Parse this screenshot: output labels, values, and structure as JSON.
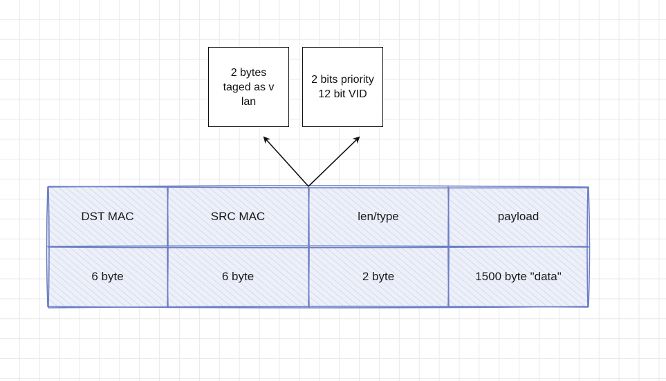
{
  "top_boxes": {
    "vlan_tag": "2 bytes\ntaged as v\nlan",
    "priority_vid": "2 bits priority\n12 bit VID"
  },
  "frame": {
    "headers": [
      "DST MAC",
      "SRC MAC",
      "len/type",
      "payload"
    ],
    "sizes": [
      "6 byte",
      "6 byte",
      "2 byte",
      "1500 byte \"data\""
    ]
  },
  "colors": {
    "cell_stroke": "#6c7fc4",
    "hatch": "#c5cde8",
    "fill": "#eef0f9",
    "arrow": "#111111"
  }
}
